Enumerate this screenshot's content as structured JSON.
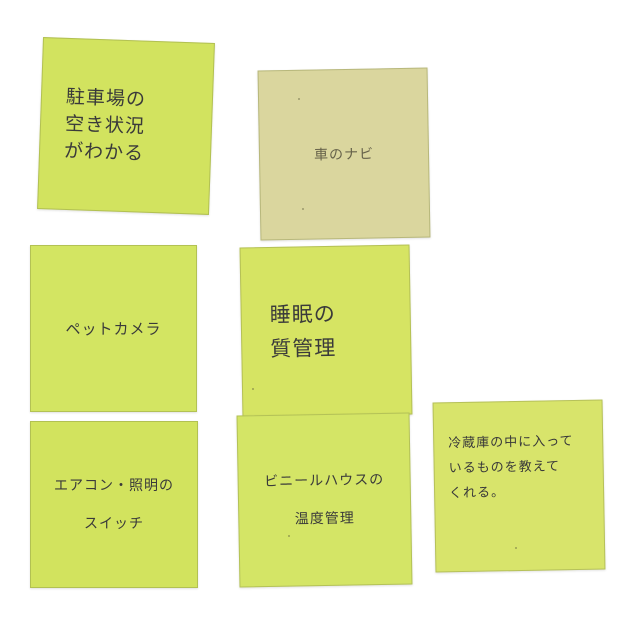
{
  "notes": [
    {
      "color": "#d2e35f",
      "lines": [
        "駐車場の",
        "空き状況",
        "がわかる"
      ]
    },
    {
      "color": "#dad69e",
      "lines": [
        "車のナビ"
      ]
    },
    {
      "color": "#d3e562",
      "lines": [
        "ペットカメラ"
      ]
    },
    {
      "color": "#d6e463",
      "lines": [
        "睡眠の",
        "質管理"
      ]
    },
    {
      "color": "#d2e35e",
      "lines": [
        "エアコン・照明の",
        "スイッチ"
      ]
    },
    {
      "color": "#d4e566",
      "lines": [
        "ビニールハウスの",
        "温度管理"
      ]
    },
    {
      "color": "#d8e46b",
      "lines": [
        "冷蔵庫の中に入って",
        "いるものを教えて",
        "くれる。"
      ]
    }
  ]
}
